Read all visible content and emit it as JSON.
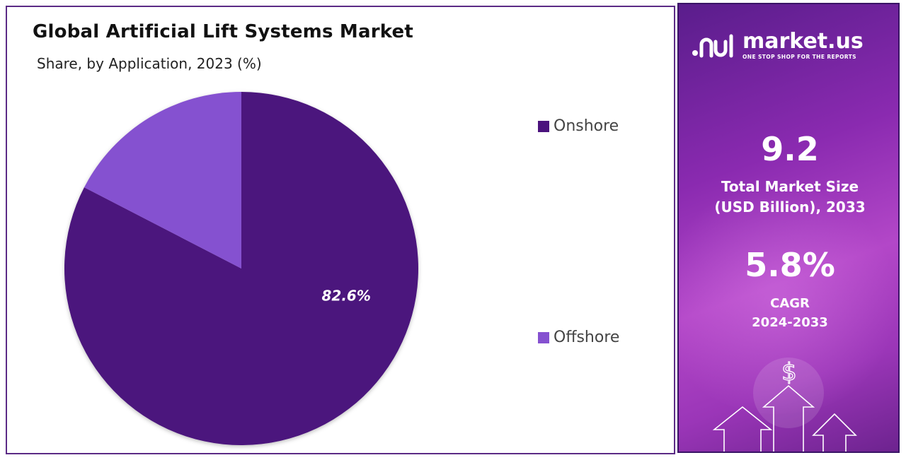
{
  "chart_data": {
    "type": "pie",
    "title": "Global Artificial Lift Systems Market",
    "subtitle": "Share, by Application, 2023 (%)",
    "categories": [
      "Onshore",
      "Offshore"
    ],
    "values": [
      82.6,
      17.4
    ],
    "data_labels": [
      "82.6%",
      ""
    ],
    "colors": [
      "#4b137d",
      "#8551d0"
    ],
    "legend_position": "right"
  },
  "legend": {
    "items": [
      {
        "label": "Onshore",
        "color": "#4b137d"
      },
      {
        "label": "Offshore",
        "color": "#8551d0"
      }
    ]
  },
  "panel": {
    "brand_name": "market.us",
    "brand_tagline": "ONE STOP SHOP FOR THE REPORTS",
    "market_size_value": "9.2",
    "market_size_label_line1": "Total Market Size",
    "market_size_label_line2": "(USD Billion), 2033",
    "cagr_value": "5.8%",
    "cagr_label_line1": "CAGR",
    "cagr_label_line2": "2024-2033",
    "icon_symbol": "$"
  }
}
